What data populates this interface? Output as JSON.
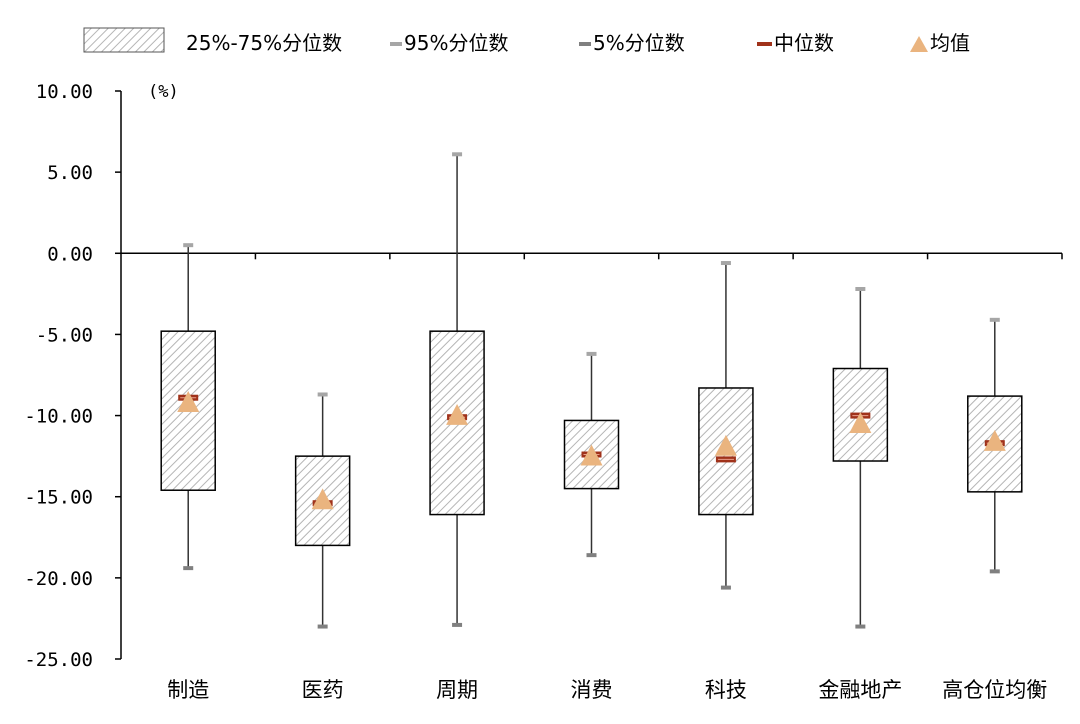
{
  "chart_data": {
    "type": "box",
    "ylabel": "(%)",
    "ylim": [
      -25,
      10
    ],
    "yticks": [
      "10.00",
      "5.00",
      "0.00",
      "-5.00",
      "-10.00",
      "-15.00",
      "-20.00",
      "-25.00"
    ],
    "categories": [
      "制造",
      "医药",
      "周期",
      "消费",
      "科技",
      "金融地产",
      "高仓位均衡"
    ],
    "p95": [
      0.5,
      -8.7,
      6.1,
      -6.2,
      -0.6,
      -2.2,
      -4.1
    ],
    "q75": [
      -4.8,
      -12.5,
      -4.8,
      -10.3,
      -8.3,
      -7.1,
      -8.8
    ],
    "median": [
      -8.9,
      -15.4,
      -10.1,
      -12.4,
      -12.7,
      -10.0,
      -11.7
    ],
    "mean": [
      -9.2,
      -15.2,
      -10.0,
      -12.5,
      -11.9,
      -10.5,
      -11.6
    ],
    "q25": [
      -14.6,
      -18.0,
      -16.1,
      -14.5,
      -16.1,
      -12.8,
      -14.7
    ],
    "p5": [
      -19.4,
      -23.0,
      -22.9,
      -18.6,
      -20.6,
      -23.0,
      -19.6
    ],
    "legend": [
      {
        "key": "box",
        "label": "25%-75%分位数"
      },
      {
        "key": "p95",
        "label": "95%分位数"
      },
      {
        "key": "p5",
        "label": "5%分位数"
      },
      {
        "key": "median",
        "label": "中位数"
      },
      {
        "key": "mean",
        "label": "均值"
      }
    ],
    "colors": {
      "box_fill": "#ffffff",
      "hatch": "#b5b5b5",
      "box_border": "#000000",
      "whisker": "#333333",
      "p95_cap": "#a6a6a6",
      "p5_cap": "#808080",
      "median": "#a0321a",
      "mean": "#eab47f"
    }
  }
}
